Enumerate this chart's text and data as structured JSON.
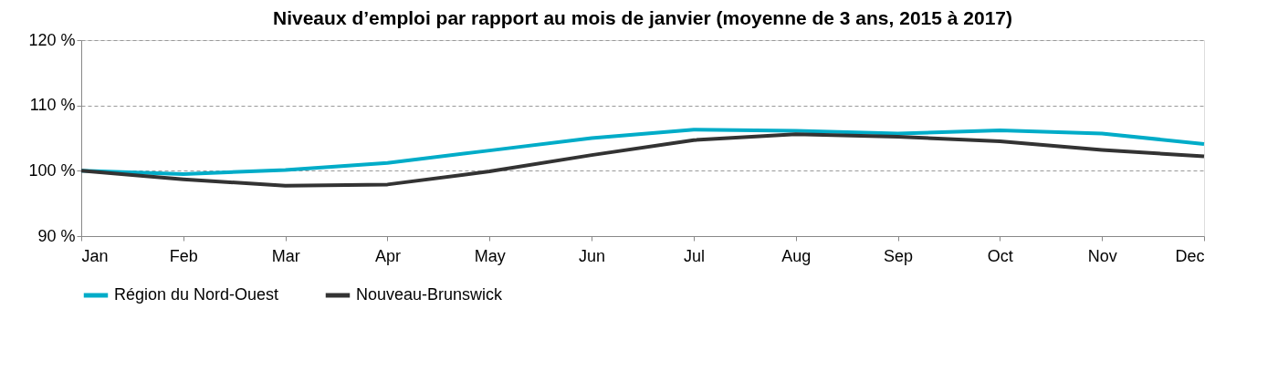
{
  "chart_data": {
    "type": "line",
    "title": "Niveaux d’emploi par rapport au mois de janvier (moyenne de 3 ans, 2015 à 2017)",
    "categories": [
      "Jan",
      "Feb",
      "Mar",
      "Apr",
      "May",
      "Jun",
      "Jul",
      "Aug",
      "Sep",
      "Oct",
      "Nov",
      "Dec"
    ],
    "series": [
      {
        "name": "Région du Nord-Ouest",
        "color": "#00acc8",
        "values": [
          100,
          99.5,
          100.1,
          101.2,
          103.1,
          105,
          106.3,
          106.1,
          105.7,
          106.2,
          105.7,
          104.1
        ]
      },
      {
        "name": "Nouveau-Brunswick",
        "color": "#333333",
        "values": [
          100,
          98.7,
          97.7,
          97.9,
          99.9,
          102.4,
          104.7,
          105.6,
          105.2,
          104.5,
          103.2,
          102.2
        ]
      }
    ],
    "ylim": [
      90,
      120
    ],
    "yticks": [
      {
        "value": 90,
        "label": "90 %"
      },
      {
        "value": 100,
        "label": "100 %"
      },
      {
        "value": 110,
        "label": "110 %"
      },
      {
        "value": 120,
        "label": "120 %"
      }
    ],
    "grid": "y",
    "legend": "bottom",
    "marker": "none",
    "line_style": "solid"
  }
}
